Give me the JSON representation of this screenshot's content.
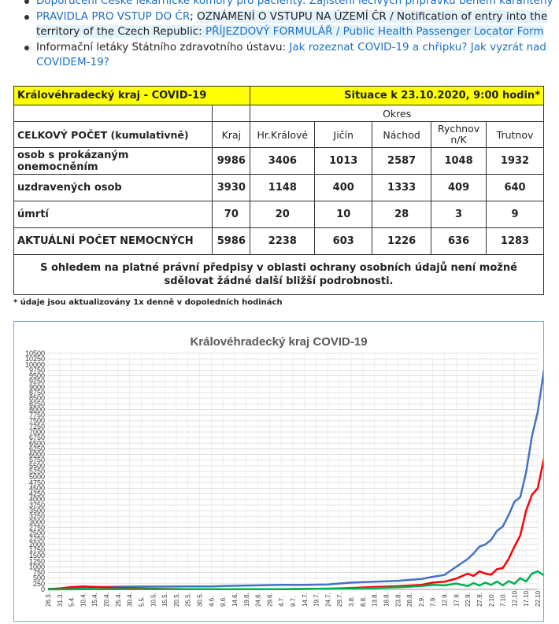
{
  "bullets": [
    {
      "parts": [
        {
          "t": "Doporučení České lékařnické komory pro pacienty: Zajištění léčivých přípravků během karantény",
          "link": true
        }
      ]
    },
    {
      "parts": [
        {
          "t": "PRAVIDLA PRO VSTUP DO ČR",
          "link": true
        },
        {
          "t": "; ",
          "link": false
        },
        {
          "t": "OZNÁMENÍ O VSTUPU NA ÚZEMÍ ČR / Notification of entry into the territory of the Czech Republic: ",
          "link": false,
          "hl": true
        },
        {
          "t": "PŘÍJEZDOVÝ FORMULÁŘ / Public Health Passenger Locator Form",
          "link": true,
          "hl": true
        }
      ]
    },
    {
      "parts": [
        {
          "t": "Informační letáky Státního zdravotního ústavu: ",
          "link": false
        },
        {
          "t": "Jak rozeznat COVID-19 a chřipku? Jak vyzrát nad COVIDEM-19?",
          "link": true
        }
      ]
    }
  ],
  "table": {
    "title_left": "Královéhradecký kraj - COVID-19",
    "title_right": "Situace k 23.10.2020, 9:00 hodin*",
    "okres_label": "Okres",
    "header_label": "CELKOVÝ POČET (kumulativně)",
    "columns": [
      "Kraj",
      "Hr.Králové",
      "Jičín",
      "Náchod",
      "Rychnov n/K",
      "Trutnov"
    ],
    "rows": [
      {
        "label": "osob s prokázaným onemocněním",
        "values": [
          "9986",
          "3406",
          "1013",
          "2587",
          "1048",
          "1932"
        ]
      },
      {
        "label": "uzdravených osob",
        "values": [
          "3930",
          "1148",
          "400",
          "1333",
          "409",
          "640"
        ]
      },
      {
        "label": "úmrtí",
        "values": [
          "70",
          "20",
          "10",
          "28",
          "3",
          "9"
        ]
      },
      {
        "label": "AKTUÁLNÍ POČET NEMOCNÝCH",
        "values": [
          "5986",
          "2238",
          "603",
          "1226",
          "636",
          "1283"
        ]
      }
    ],
    "note": "S ohledem na platné právní předpisy v oblasti ochrany osobních údajů není možné sdělovat žádné další bližší podrobnosti."
  },
  "footnote": "* údaje jsou aktualizovány 1x denně v dopoledních hodinách",
  "chart_data": {
    "type": "line",
    "title": "Královéhradecký kraj COVID-19",
    "ylim": [
      0,
      10500
    ],
    "ytick_step": 250,
    "xticks": [
      "26.3.",
      "31.3.",
      "5.4.",
      "10.4.",
      "15.4.",
      "20.4.",
      "25.4.",
      "30.4.",
      "5.5.",
      "10.5.",
      "15.5.",
      "20.5.",
      "25.5.",
      "30.5.",
      "4.6.",
      "9.6.",
      "14.6.",
      "19.6.",
      "24.6.",
      "29.6.",
      "4.7.",
      "9.7.",
      "14.7.",
      "19.7.",
      "24.7.",
      "29.7.",
      "3.8.",
      "8.8.",
      "13.8.",
      "18.8.",
      "23.8.",
      "28.8.",
      "2.9.",
      "7.9.",
      "12.9.",
      "17.9.",
      "22.9.",
      "27.9.",
      "2.10.",
      "7.10.",
      "12.10.",
      "17.10.",
      "22.10."
    ],
    "grid": true,
    "series": [
      {
        "color": "#4472c4",
        "x": [
          0,
          2,
          4,
          6,
          8,
          10,
          12,
          14,
          16,
          18,
          20,
          22,
          24,
          26,
          28,
          30,
          32,
          33,
          34,
          35,
          36,
          36.5,
          37,
          37.5,
          38,
          38.5,
          39,
          39.5,
          40,
          40.5,
          41,
          41.5,
          42,
          42.6
        ],
        "values": [
          20,
          60,
          100,
          120,
          125,
          125,
          130,
          130,
          160,
          180,
          200,
          200,
          220,
          300,
          340,
          380,
          460,
          560,
          640,
          1000,
          1350,
          1600,
          1900,
          2000,
          2200,
          2600,
          2800,
          3300,
          3900,
          4100,
          5200,
          6800,
          7900,
          9986
        ]
      },
      {
        "color": "#ff0000",
        "x": [
          0,
          1,
          2,
          3,
          4,
          5,
          6,
          8,
          10,
          12,
          14,
          16,
          18,
          20,
          22,
          24,
          26,
          28,
          30,
          32,
          33,
          34,
          35,
          36,
          36.5,
          37,
          37.5,
          38,
          38.5,
          39,
          39.5,
          40,
          40.5,
          41,
          41.5,
          42,
          42.6
        ],
        "values": [
          10,
          40,
          100,
          130,
          110,
          90,
          70,
          40,
          20,
          10,
          10,
          10,
          10,
          10,
          20,
          30,
          60,
          110,
          140,
          200,
          300,
          340,
          480,
          700,
          600,
          800,
          700,
          650,
          900,
          950,
          1350,
          1900,
          2400,
          3500,
          4200,
          4500,
          5986
        ]
      },
      {
        "color": "#00b050",
        "x": [
          0,
          2,
          4,
          6,
          8,
          10,
          12,
          14,
          16,
          18,
          20,
          22,
          24,
          26,
          28,
          30,
          32,
          33,
          34,
          35,
          36,
          36.5,
          37,
          37.5,
          38,
          38.5,
          39,
          39.5,
          40,
          40.5,
          41,
          41.5,
          42,
          42.6
        ],
        "values": [
          0,
          5,
          10,
          10,
          10,
          10,
          10,
          10,
          10,
          10,
          10,
          20,
          30,
          40,
          60,
          90,
          150,
          200,
          180,
          260,
          150,
          280,
          170,
          300,
          200,
          350,
          180,
          370,
          250,
          500,
          350,
          700,
          800,
          600
        ]
      }
    ]
  }
}
